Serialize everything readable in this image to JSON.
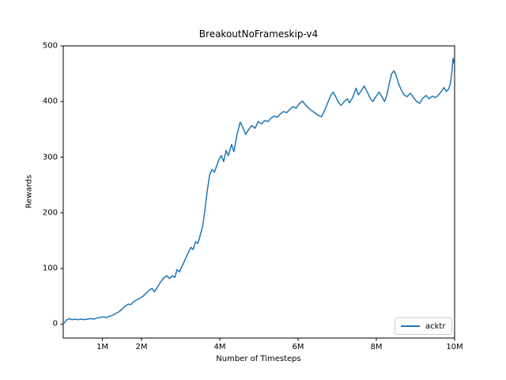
{
  "colors": {
    "line": "#1f77b4",
    "text": "#000000",
    "axis": "#000000",
    "legend_border": "#cccccc",
    "background": "#ffffff"
  },
  "chart_data": {
    "type": "line",
    "title": "BreakoutNoFrameskip-v4",
    "xlabel": "Number of Timesteps",
    "ylabel": "Rewards",
    "x_unit": "M timesteps",
    "xlim": [
      0,
      10
    ],
    "ylim": [
      -25,
      500
    ],
    "grid": false,
    "x_ticks": [
      {
        "value": 1,
        "label": "1M"
      },
      {
        "value": 2,
        "label": "2M"
      },
      {
        "value": 4,
        "label": "4M"
      },
      {
        "value": 6,
        "label": "6M"
      },
      {
        "value": 8,
        "label": "8M"
      },
      {
        "value": 10,
        "label": "10M"
      }
    ],
    "y_ticks": [
      {
        "value": 0,
        "label": "0"
      },
      {
        "value": 100,
        "label": "100"
      },
      {
        "value": 200,
        "label": "200"
      },
      {
        "value": 300,
        "label": "300"
      },
      {
        "value": 400,
        "label": "400"
      },
      {
        "value": 500,
        "label": "500"
      }
    ],
    "legend": {
      "position": "lower right",
      "entries": [
        {
          "label": "acktr",
          "color": "#1f77b4"
        }
      ]
    },
    "series": [
      {
        "name": "acktr",
        "color": "#1f77b4",
        "points": [
          [
            0.03,
            2
          ],
          [
            0.09,
            8
          ],
          [
            0.16,
            10
          ],
          [
            0.22,
            8
          ],
          [
            0.3,
            9
          ],
          [
            0.38,
            8
          ],
          [
            0.46,
            9
          ],
          [
            0.54,
            8
          ],
          [
            0.62,
            9
          ],
          [
            0.7,
            10
          ],
          [
            0.78,
            9
          ],
          [
            0.86,
            11
          ],
          [
            0.94,
            12
          ],
          [
            1.02,
            13
          ],
          [
            1.1,
            12
          ],
          [
            1.18,
            14
          ],
          [
            1.26,
            16
          ],
          [
            1.34,
            19
          ],
          [
            1.42,
            22
          ],
          [
            1.5,
            27
          ],
          [
            1.58,
            32
          ],
          [
            1.66,
            36
          ],
          [
            1.72,
            35
          ],
          [
            1.81,
            41
          ],
          [
            1.89,
            44
          ],
          [
            1.97,
            47
          ],
          [
            2.05,
            51
          ],
          [
            2.13,
            56
          ],
          [
            2.21,
            62
          ],
          [
            2.27,
            64
          ],
          [
            2.33,
            58
          ],
          [
            2.41,
            67
          ],
          [
            2.49,
            76
          ],
          [
            2.57,
            83
          ],
          [
            2.65,
            87
          ],
          [
            2.71,
            82
          ],
          [
            2.79,
            87
          ],
          [
            2.85,
            84
          ],
          [
            2.91,
            98
          ],
          [
            2.97,
            94
          ],
          [
            3.03,
            103
          ],
          [
            3.11,
            115
          ],
          [
            3.19,
            128
          ],
          [
            3.26,
            138
          ],
          [
            3.32,
            134
          ],
          [
            3.38,
            148
          ],
          [
            3.44,
            145
          ],
          [
            3.5,
            160
          ],
          [
            3.56,
            175
          ],
          [
            3.62,
            205
          ],
          [
            3.68,
            240
          ],
          [
            3.74,
            268
          ],
          [
            3.8,
            278
          ],
          [
            3.86,
            273
          ],
          [
            3.92,
            284
          ],
          [
            3.98,
            296
          ],
          [
            4.04,
            303
          ],
          [
            4.1,
            292
          ],
          [
            4.16,
            312
          ],
          [
            4.22,
            303
          ],
          [
            4.3,
            323
          ],
          [
            4.36,
            310
          ],
          [
            4.44,
            340
          ],
          [
            4.52,
            363
          ],
          [
            4.58,
            355
          ],
          [
            4.66,
            341
          ],
          [
            4.74,
            350
          ],
          [
            4.82,
            357
          ],
          [
            4.9,
            352
          ],
          [
            4.98,
            364
          ],
          [
            5.07,
            360
          ],
          [
            5.15,
            366
          ],
          [
            5.23,
            364
          ],
          [
            5.31,
            370
          ],
          [
            5.39,
            374
          ],
          [
            5.47,
            372
          ],
          [
            5.55,
            378
          ],
          [
            5.63,
            382
          ],
          [
            5.71,
            380
          ],
          [
            5.79,
            386
          ],
          [
            5.87,
            391
          ],
          [
            5.95,
            388
          ],
          [
            6.03,
            396
          ],
          [
            6.11,
            401
          ],
          [
            6.19,
            394
          ],
          [
            6.27,
            388
          ],
          [
            6.36,
            383
          ],
          [
            6.44,
            379
          ],
          [
            6.52,
            375
          ],
          [
            6.6,
            373
          ],
          [
            6.68,
            384
          ],
          [
            6.76,
            398
          ],
          [
            6.84,
            412
          ],
          [
            6.9,
            417
          ],
          [
            6.96,
            409
          ],
          [
            7.04,
            398
          ],
          [
            7.1,
            393
          ],
          [
            7.18,
            400
          ],
          [
            7.26,
            405
          ],
          [
            7.32,
            398
          ],
          [
            7.4,
            408
          ],
          [
            7.48,
            424
          ],
          [
            7.54,
            412
          ],
          [
            7.62,
            420
          ],
          [
            7.69,
            428
          ],
          [
            7.77,
            417
          ],
          [
            7.85,
            405
          ],
          [
            7.91,
            400
          ],
          [
            7.99,
            409
          ],
          [
            8.07,
            417
          ],
          [
            8.13,
            410
          ],
          [
            8.21,
            400
          ],
          [
            8.27,
            412
          ],
          [
            8.33,
            432
          ],
          [
            8.39,
            450
          ],
          [
            8.45,
            455
          ],
          [
            8.51,
            447
          ],
          [
            8.57,
            432
          ],
          [
            8.63,
            422
          ],
          [
            8.71,
            412
          ],
          [
            8.79,
            409
          ],
          [
            8.87,
            415
          ],
          [
            8.95,
            407
          ],
          [
            9.03,
            400
          ],
          [
            9.11,
            397
          ],
          [
            9.19,
            406
          ],
          [
            9.27,
            411
          ],
          [
            9.35,
            405
          ],
          [
            9.43,
            410
          ],
          [
            9.51,
            407
          ],
          [
            9.59,
            412
          ],
          [
            9.67,
            419
          ],
          [
            9.73,
            425
          ],
          [
            9.79,
            418
          ],
          [
            9.85,
            423
          ],
          [
            9.89,
            432
          ],
          [
            9.93,
            452
          ],
          [
            9.96,
            478
          ],
          [
            9.99,
            468
          ]
        ]
      }
    ]
  }
}
